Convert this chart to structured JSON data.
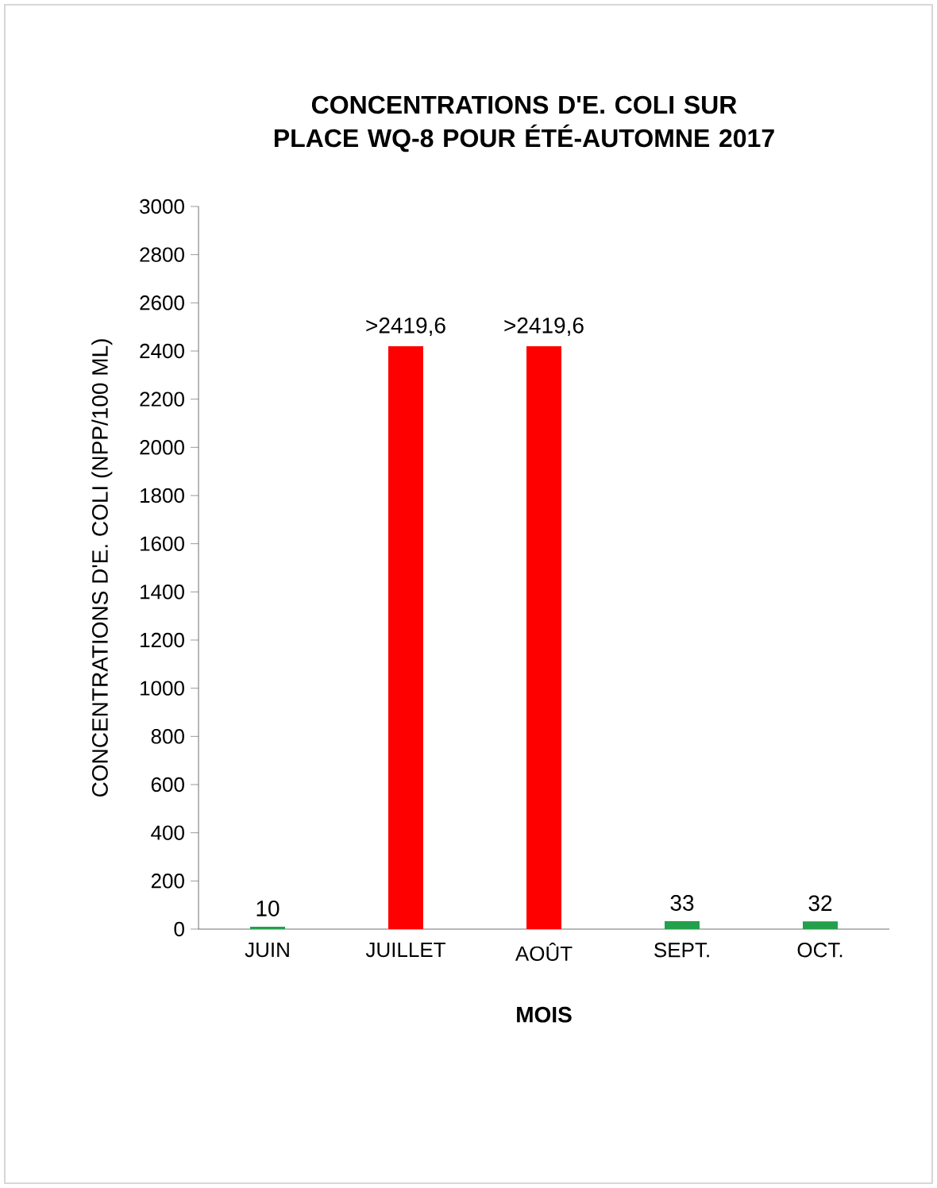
{
  "chart_data": {
    "type": "bar",
    "title": "CONCENTRATIONS D'E. COLI SUR PLACE WQ-8 POUR ÉTÉ-AUTOMNE 2017",
    "xlabel": "MOIS",
    "ylabel": "CONCENTRATIONS D'E. COLI (NPP/100 ML)",
    "categories": [
      "JUIN",
      "JUILLET",
      "AOÛT",
      "SEPT.",
      "OCT."
    ],
    "values": [
      10,
      2419.6,
      2419.6,
      33,
      32
    ],
    "colors": [
      "#22a04b",
      "#ff0000",
      "#ff0000",
      "#22a04b",
      "#22a04b"
    ],
    "value_labels": [
      "10",
      ">2419,6",
      ">2419,6",
      "33",
      "32"
    ],
    "ylim": [
      0,
      3000
    ],
    "yticks": [
      0,
      200,
      400,
      600,
      800,
      1000,
      1200,
      1400,
      1600,
      1800,
      2000,
      2200,
      2400,
      2600,
      2800,
      3000
    ],
    "grid": false
  }
}
